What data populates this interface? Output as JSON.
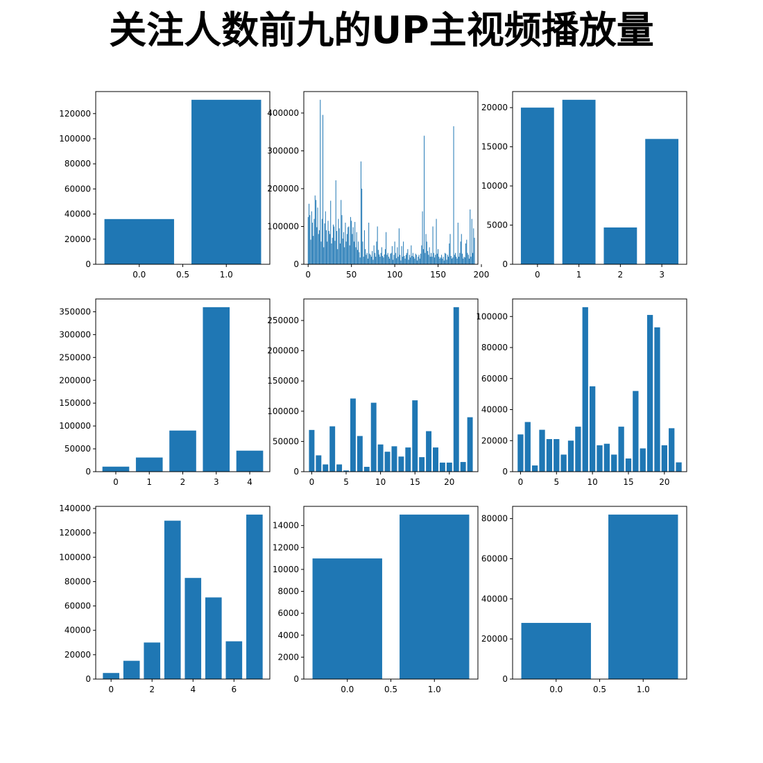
{
  "figure": {
    "title": "关注人数前九的UP主视频播放量",
    "bar_color": "#1f77b4"
  },
  "chart_data": [
    {
      "type": "bar",
      "x": [
        0,
        1
      ],
      "values": [
        36000,
        131000
      ],
      "ylim": [
        0,
        137550
      ],
      "xlim": [
        -0.5,
        1.5
      ],
      "yticks": [
        0,
        20000,
        40000,
        60000,
        80000,
        100000,
        120000
      ],
      "xticks": [
        {
          "v": 0.0,
          "label": "0.0"
        },
        {
          "v": 0.5,
          "label": "0.5"
        },
        {
          "v": 1.0,
          "label": "1.0"
        }
      ]
    },
    {
      "type": "bar",
      "x_start": 0,
      "bar_width": 0.8,
      "values": [
        125000,
        160000,
        130000,
        65000,
        140000,
        110000,
        75000,
        120000,
        182000,
        170000,
        98000,
        150000,
        80000,
        90000,
        435000,
        60000,
        120000,
        395000,
        45000,
        108000,
        140000,
        90000,
        60000,
        115000,
        88000,
        80000,
        168000,
        55000,
        70000,
        105000,
        100000,
        62000,
        222000,
        88000,
        40000,
        120000,
        95000,
        55000,
        170000,
        130000,
        68000,
        85000,
        45000,
        110000,
        60000,
        80000,
        98000,
        100000,
        50000,
        125000,
        115000,
        80000,
        98000,
        60000,
        112000,
        45000,
        85000,
        38000,
        60000,
        32000,
        18000,
        272000,
        200000,
        60000,
        20000,
        90000,
        40000,
        25000,
        30000,
        15000,
        110000,
        28000,
        25000,
        20000,
        35000,
        12000,
        50000,
        30000,
        20000,
        60000,
        100000,
        38000,
        26000,
        20000,
        30000,
        45000,
        22000,
        18000,
        26000,
        40000,
        85000,
        25000,
        30000,
        20000,
        15000,
        28000,
        30000,
        48000,
        12000,
        25000,
        60000,
        30000,
        16000,
        45000,
        20000,
        95000,
        25000,
        10000,
        48000,
        20000,
        60000,
        22000,
        15000,
        25000,
        30000,
        40000,
        12000,
        25000,
        18000,
        50000,
        22000,
        30000,
        20000,
        15000,
        28000,
        25000,
        10000,
        20000,
        25000,
        15000,
        28000,
        50000,
        140000,
        40000,
        340000,
        30000,
        80000,
        60000,
        35000,
        25000,
        45000,
        20000,
        30000,
        20000,
        100000,
        30000,
        18000,
        25000,
        120000,
        28000,
        40000,
        20000,
        15000,
        18000,
        25000,
        15000,
        20000,
        10000,
        30000,
        28000,
        12000,
        25000,
        20000,
        55000,
        80000,
        22000,
        15000,
        18000,
        365000,
        25000,
        30000,
        20000,
        15000,
        110000,
        20000,
        30000,
        60000,
        80000,
        28000,
        15000,
        20000,
        18000,
        55000,
        65000,
        30000,
        25000,
        15000,
        145000,
        20000,
        120000,
        30000,
        95000,
        70000
      ],
      "ylim": [
        0,
        456750
      ],
      "xlim": [
        -5,
        196
      ],
      "yticks": [
        0,
        100000,
        200000,
        300000,
        400000
      ],
      "xticks": [
        {
          "v": 0,
          "label": "0"
        },
        {
          "v": 50,
          "label": "50"
        },
        {
          "v": 100,
          "label": "100"
        },
        {
          "v": 150,
          "label": "150"
        },
        {
          "v": 200,
          "label": "200"
        }
      ]
    },
    {
      "type": "bar",
      "x": [
        0,
        1,
        2,
        3
      ],
      "values": [
        20000,
        21000,
        4700,
        16000
      ],
      "ylim": [
        0,
        22050
      ],
      "xlim": [
        -0.6,
        3.6
      ],
      "yticks": [
        0,
        5000,
        10000,
        15000,
        20000
      ],
      "xticks": [
        {
          "v": 0,
          "label": "0"
        },
        {
          "v": 1,
          "label": "1"
        },
        {
          "v": 2,
          "label": "2"
        },
        {
          "v": 3,
          "label": "3"
        }
      ]
    },
    {
      "type": "bar",
      "x": [
        0,
        1,
        2,
        3,
        4
      ],
      "values": [
        11000,
        31000,
        90000,
        360000,
        46000
      ],
      "ylim": [
        0,
        378000
      ],
      "xlim": [
        -0.6,
        4.6
      ],
      "yticks": [
        0,
        50000,
        100000,
        150000,
        200000,
        250000,
        300000,
        350000
      ],
      "xticks": [
        {
          "v": 0,
          "label": "0"
        },
        {
          "v": 1,
          "label": "1"
        },
        {
          "v": 2,
          "label": "2"
        },
        {
          "v": 3,
          "label": "3"
        },
        {
          "v": 4,
          "label": "4"
        }
      ]
    },
    {
      "type": "bar",
      "x_start": 0,
      "values": [
        69000,
        27000,
        12000,
        75000,
        12000,
        2000,
        121000,
        59000,
        8000,
        114000,
        45000,
        33000,
        42000,
        25000,
        40000,
        118000,
        24000,
        67000,
        40000,
        15000,
        15000,
        272000,
        16000,
        90000
      ],
      "ylim": [
        0,
        285600
      ],
      "xlim": [
        -1.15,
        24.15
      ],
      "yticks": [
        0,
        50000,
        100000,
        150000,
        200000,
        250000
      ],
      "xticks": [
        {
          "v": 0,
          "label": "0"
        },
        {
          "v": 5,
          "label": "5"
        },
        {
          "v": 10,
          "label": "10"
        },
        {
          "v": 15,
          "label": "15"
        },
        {
          "v": 20,
          "label": "20"
        }
      ]
    },
    {
      "type": "bar",
      "x_start": 0,
      "values": [
        24000,
        32000,
        4000,
        27000,
        21000,
        21000,
        11000,
        20000,
        29000,
        106000,
        55000,
        17000,
        18000,
        11000,
        29000,
        8500,
        52000,
        15000,
        101000,
        93000,
        17000,
        28000,
        6000
      ],
      "ylim": [
        0,
        111300
      ],
      "xlim": [
        -1.1,
        23.1
      ],
      "yticks": [
        0,
        20000,
        40000,
        60000,
        80000,
        100000
      ],
      "xticks": [
        {
          "v": 0,
          "label": "0"
        },
        {
          "v": 5,
          "label": "5"
        },
        {
          "v": 10,
          "label": "10"
        },
        {
          "v": 15,
          "label": "15"
        },
        {
          "v": 20,
          "label": "20"
        }
      ]
    },
    {
      "type": "bar",
      "x": [
        0,
        1,
        2,
        3,
        4,
        5,
        6,
        7
      ],
      "values": [
        5000,
        15000,
        30000,
        130000,
        83000,
        67000,
        31000,
        135000
      ],
      "ylim": [
        0,
        141750
      ],
      "xlim": [
        -0.75,
        7.75
      ],
      "yticks": [
        0,
        20000,
        40000,
        60000,
        80000,
        100000,
        120000,
        140000
      ],
      "xticks": [
        {
          "v": 0,
          "label": "0"
        },
        {
          "v": 2,
          "label": "2"
        },
        {
          "v": 4,
          "label": "4"
        },
        {
          "v": 6,
          "label": "6"
        }
      ]
    },
    {
      "type": "bar",
      "x": [
        0,
        1
      ],
      "values": [
        11000,
        15000
      ],
      "ylim": [
        0,
        15750
      ],
      "xlim": [
        -0.5,
        1.5
      ],
      "yticks": [
        0,
        2000,
        4000,
        6000,
        8000,
        10000,
        12000,
        14000
      ],
      "xticks": [
        {
          "v": 0.0,
          "label": "0.0"
        },
        {
          "v": 0.5,
          "label": "0.5"
        },
        {
          "v": 1.0,
          "label": "1.0"
        }
      ]
    },
    {
      "type": "bar",
      "x": [
        0,
        1
      ],
      "values": [
        28000,
        82000
      ],
      "ylim": [
        0,
        86100
      ],
      "xlim": [
        -0.5,
        1.5
      ],
      "yticks": [
        0,
        20000,
        40000,
        60000,
        80000
      ],
      "xticks": [
        {
          "v": 0.0,
          "label": "0.0"
        },
        {
          "v": 0.5,
          "label": "0.5"
        },
        {
          "v": 1.0,
          "label": "1.0"
        }
      ]
    }
  ]
}
